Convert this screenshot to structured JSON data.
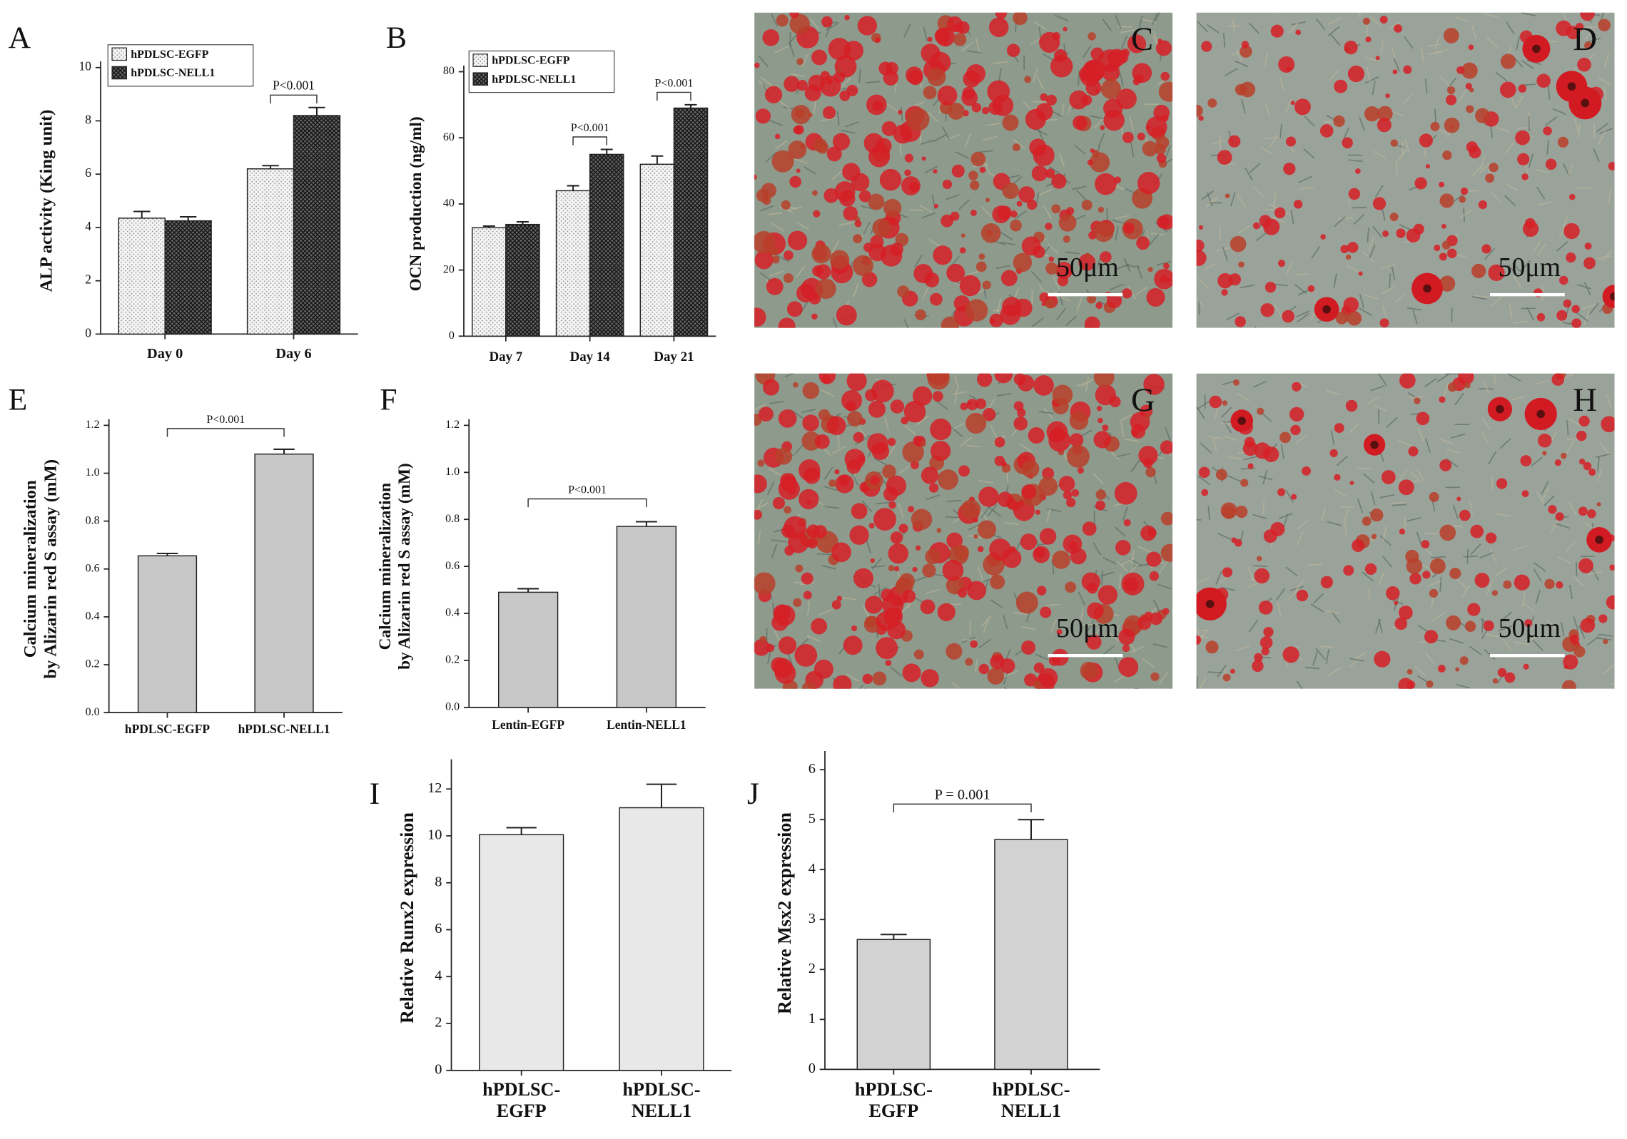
{
  "chart_data": [
    {
      "type": "bar",
      "panel": "A",
      "ylabel": "ALP activity (King unit)",
      "categories": [
        "Day 0",
        "Day 6"
      ],
      "series": [
        {
          "name": "hPDLSC-EGFP",
          "color": "#f2f2f2",
          "fill_pattern": "dots",
          "values": [
            4.35,
            6.2
          ],
          "errors": [
            0.25,
            0.12
          ]
        },
        {
          "name": "hPDLSC-NELL1",
          "color": "#555555",
          "fill_pattern": "crosshatch",
          "values": [
            4.25,
            8.2
          ],
          "errors": [
            0.15,
            0.3
          ]
        }
      ],
      "ylim": [
        0,
        10
      ],
      "yticks": [
        0,
        2,
        4,
        6,
        8,
        10
      ],
      "legend": "top-left",
      "annotations": [
        {
          "text": "P<0.001",
          "category": 1
        }
      ]
    },
    {
      "type": "bar",
      "panel": "B",
      "ylabel": "OCN production (ng/ml)",
      "categories": [
        "Day 7",
        "Day 14",
        "Day 21"
      ],
      "series": [
        {
          "name": "hPDLSC-EGFP",
          "color": "#f2f2f2",
          "fill_pattern": "dots",
          "values": [
            32.8,
            44,
            52
          ],
          "errors": [
            0.5,
            1.5,
            2.5
          ]
        },
        {
          "name": "hPDLSC-NELL1",
          "color": "#555555",
          "fill_pattern": "crosshatch",
          "values": [
            33.8,
            55,
            69
          ],
          "errors": [
            0.8,
            1.5,
            1
          ]
        }
      ],
      "ylim": [
        0,
        80
      ],
      "yticks": [
        0,
        20,
        40,
        60,
        80
      ],
      "legend": "top-left",
      "annotations": [
        {
          "text": "P<0.001",
          "category": 1
        },
        {
          "text": "P<0.001",
          "category": 2
        }
      ]
    },
    {
      "type": "bar",
      "panel": "E",
      "ylabel": "Calcium mineralization\nby Alizarin red S assay (mM)",
      "categories": [
        "hPDLSC-EGFP",
        "hPDLSC-NELL1"
      ],
      "series": [
        {
          "name": null,
          "color": "#c8c8c8",
          "values": [
            0.655,
            1.08
          ],
          "errors": [
            0.01,
            0.02
          ]
        }
      ],
      "ylim": [
        0,
        1.2
      ],
      "yticks": [
        {
          "value": 0,
          "label": "0.0"
        },
        0.2,
        0.4,
        0.6,
        0.8,
        {
          "value": 1,
          "label": "1.0"
        },
        1.2
      ],
      "annotations": [
        {
          "text": "P<0.001"
        }
      ]
    },
    {
      "type": "bar",
      "panel": "F",
      "ylabel": "Calcium mineralization\nby Alizarin red S assay (mM)",
      "categories": [
        "Lentin-EGFP",
        "Lentin-NELL1"
      ],
      "series": [
        {
          "name": null,
          "color": "#c8c8c8",
          "values": [
            0.49,
            0.77
          ],
          "errors": [
            0.015,
            0.02
          ]
        }
      ],
      "ylim": [
        0,
        1.2
      ],
      "yticks": [
        {
          "value": 0,
          "label": "0.0"
        },
        0.2,
        0.4,
        0.6,
        0.8,
        {
          "value": 1,
          "label": "1.0"
        },
        1.2
      ],
      "annotations": [
        {
          "text": "P<0.001"
        }
      ]
    },
    {
      "type": "bar",
      "panel": "I",
      "ylabel": "Relative Runx2 expression",
      "categories": [
        "hPDLSC-\nEGFP",
        "hPDLSC-\nNELL1"
      ],
      "series": [
        {
          "name": null,
          "color": "#e8e8e8",
          "values": [
            10.05,
            11.2
          ],
          "errors": [
            0.3,
            1.0
          ]
        }
      ],
      "ylim": [
        0,
        13
      ],
      "yticks": [
        0,
        2,
        4,
        6,
        8,
        10,
        12
      ]
    },
    {
      "type": "bar",
      "panel": "J",
      "ylabel": "Relative Msx2 expression",
      "categories": [
        "hPDLSC-\nEGFP",
        "hPDLSC-\nNELL1"
      ],
      "series": [
        {
          "name": null,
          "color": "#d2d2d2",
          "values": [
            2.6,
            4.6
          ],
          "errors": [
            0.1,
            0.4
          ]
        }
      ],
      "ylim": [
        0,
        6.25
      ],
      "yticks": [
        0,
        1,
        2,
        3,
        4,
        5,
        6
      ],
      "annotations": [
        {
          "text": "P = 0.001"
        }
      ]
    }
  ],
  "images": [
    {
      "label": "C",
      "scale_bar": "50μm"
    },
    {
      "label": "D",
      "scale_bar": "50μm"
    },
    {
      "label": "G",
      "scale_bar": "50μm"
    },
    {
      "label": "H",
      "scale_bar": "50μm"
    }
  ]
}
